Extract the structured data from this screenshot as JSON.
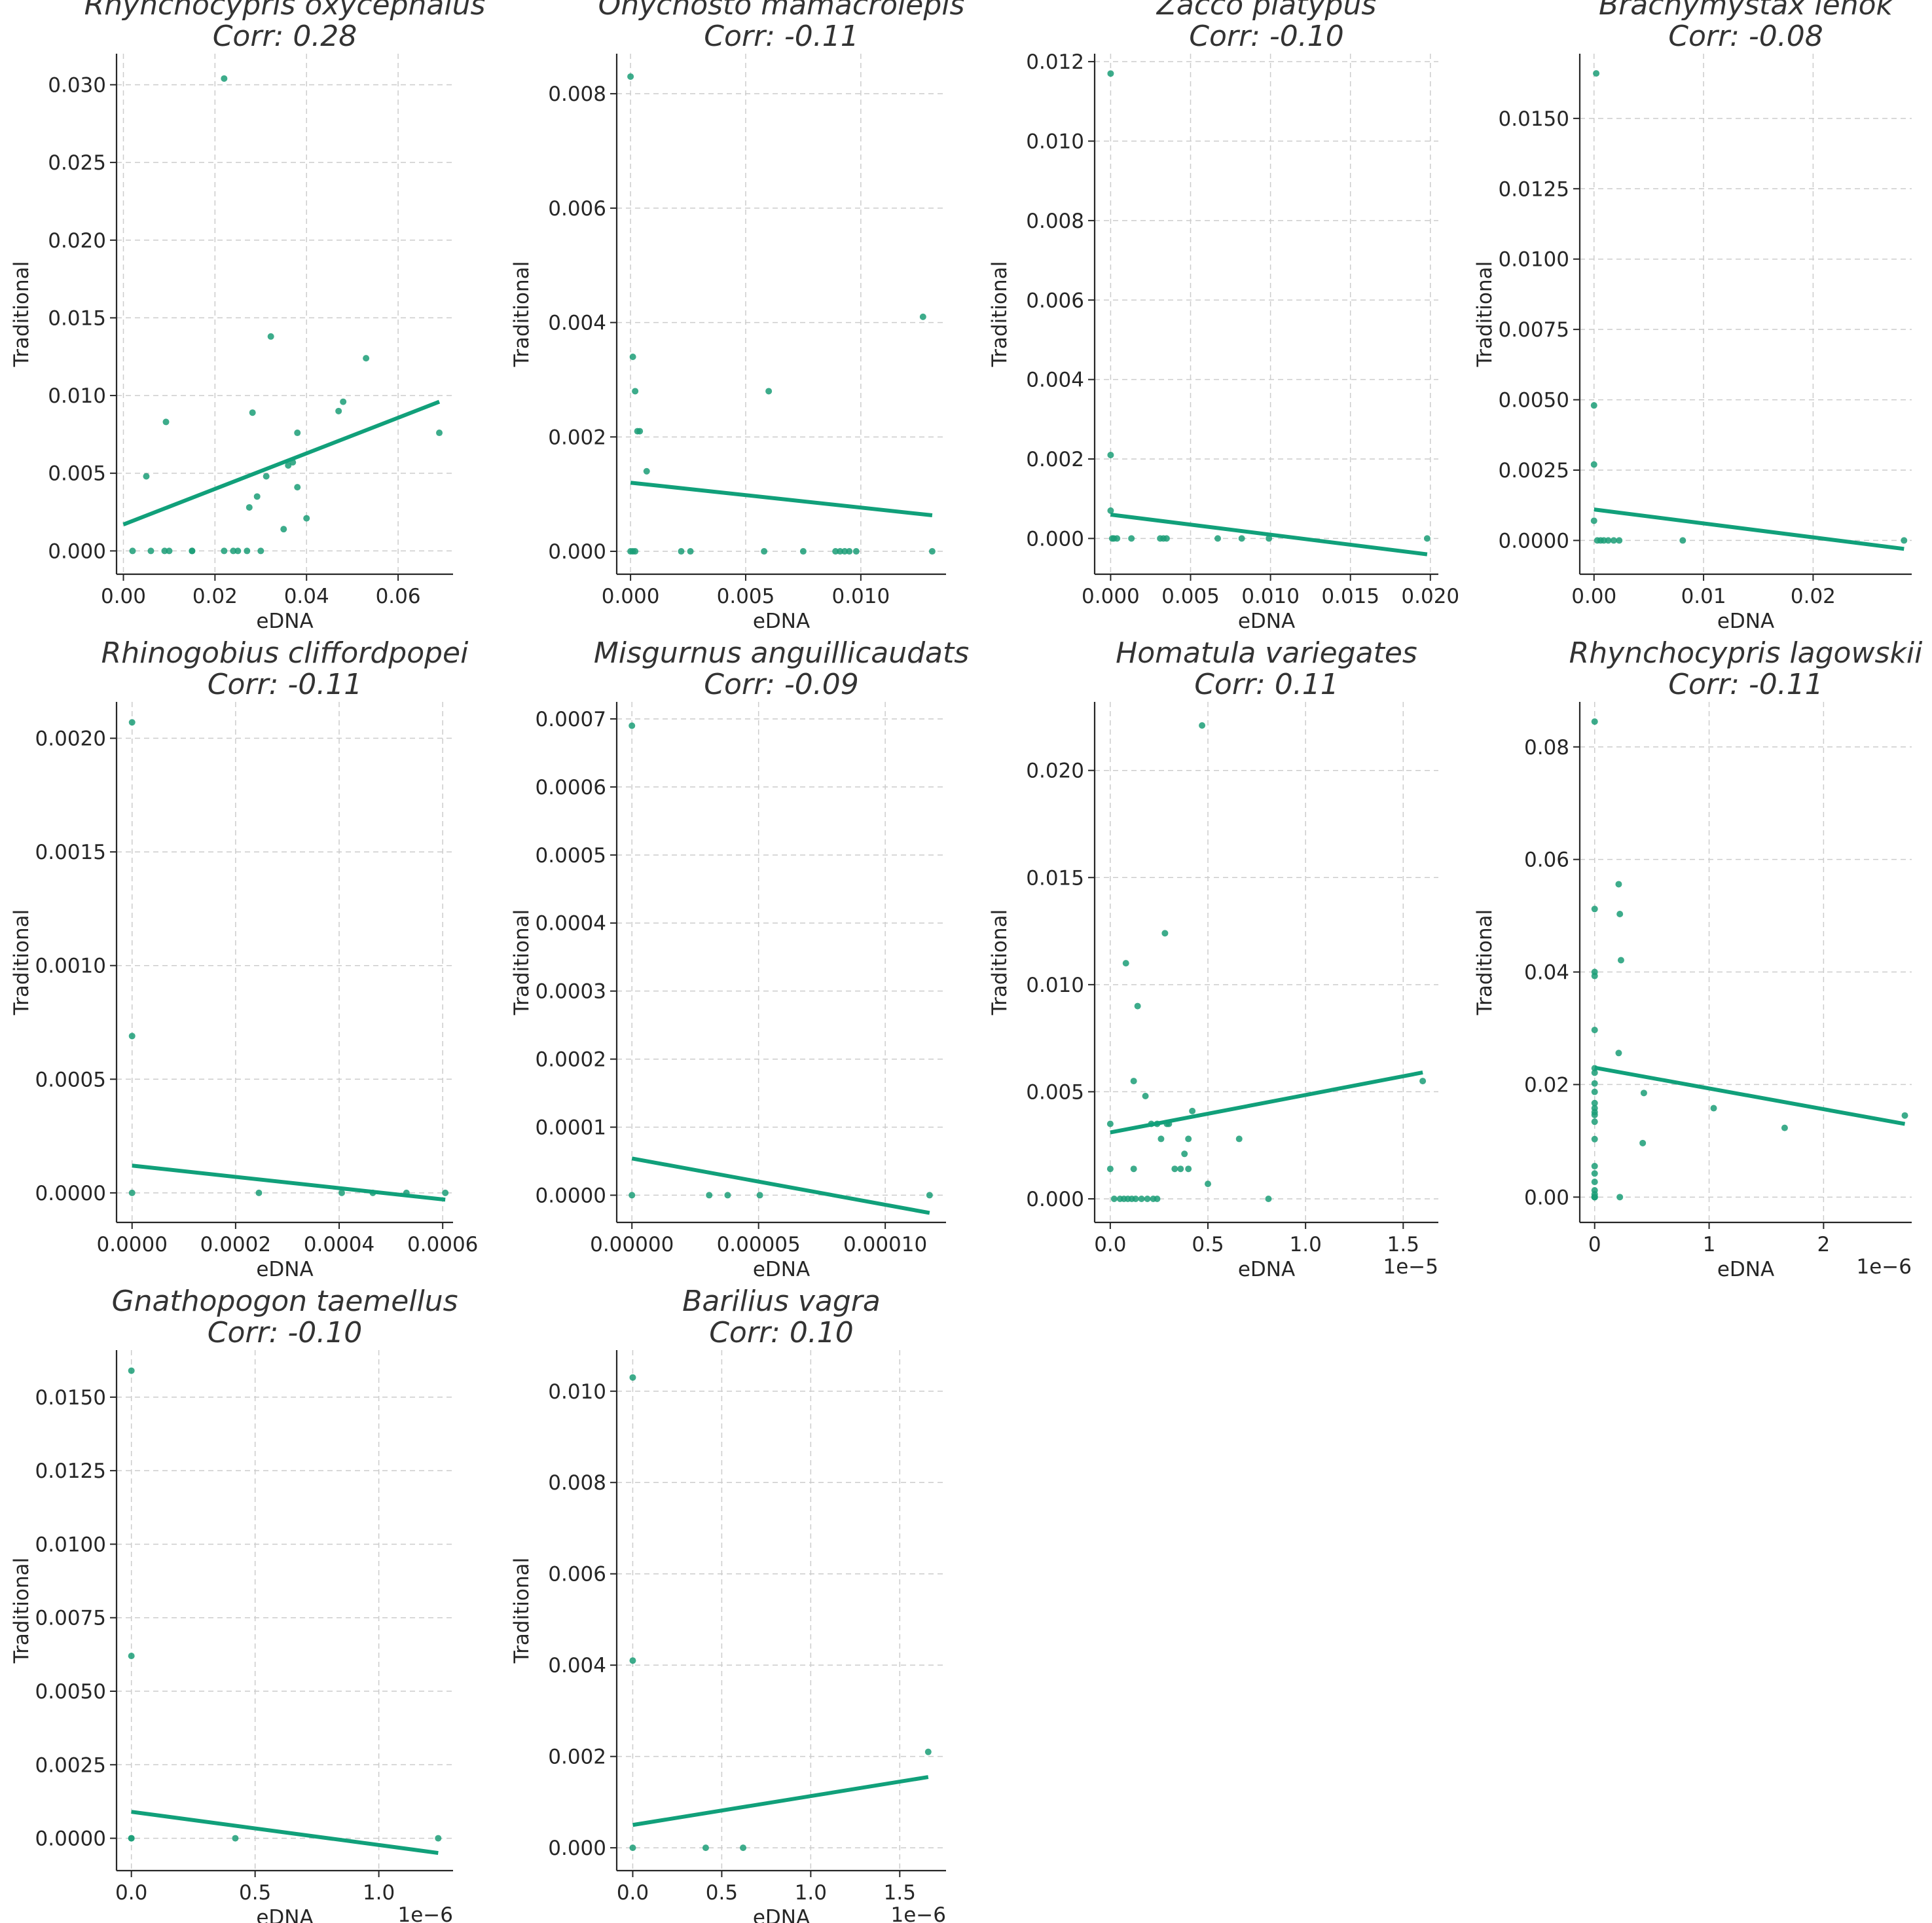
{
  "colors": {
    "marker": "#1b9e77",
    "fit_line": "#11a07a",
    "title": "#333333",
    "grid": "#cccccc"
  },
  "chart_data": [
    {
      "type": "scatter",
      "title": "Rhynchocypris oxycephalus",
      "subtitle": "Corr: 0.28",
      "xlabel": "eDNA",
      "ylabel": "Traditional",
      "offset_text": "",
      "xlim": [
        -0.0015,
        0.072
      ],
      "ylim": [
        -0.0015,
        0.032
      ],
      "xticks": [
        0.0,
        0.02,
        0.04,
        0.06
      ],
      "xtick_labels": [
        "0.00",
        "0.02",
        "0.04",
        "0.06"
      ],
      "yticks": [
        0.0,
        0.005,
        0.01,
        0.015,
        0.02,
        0.025,
        0.03
      ],
      "ytick_labels": [
        "0.000",
        "0.005",
        "0.010",
        "0.015",
        "0.020",
        "0.025",
        "0.030"
      ],
      "x": [
        0.002,
        0.006,
        0.009,
        0.01,
        0.015,
        0.022,
        0.024,
        0.025,
        0.027,
        0.03,
        0.005,
        0.0093,
        0.022,
        0.0322,
        0.0282,
        0.0292,
        0.0275,
        0.0312,
        0.036,
        0.037,
        0.038,
        0.038,
        0.04,
        0.047,
        0.048,
        0.053,
        0.069,
        0.035,
        0.015
      ],
      "y": [
        0.0,
        0.0,
        0.0,
        0.0,
        0.0,
        0.0,
        0.0,
        0.0,
        0.0,
        0.0,
        0.0048,
        0.0083,
        0.0304,
        0.0138,
        0.0089,
        0.0035,
        0.0028,
        0.0048,
        0.0055,
        0.0057,
        0.0076,
        0.0041,
        0.0021,
        0.009,
        0.0096,
        0.0124,
        0.0076,
        0.0014,
        0.0
      ],
      "fit": [
        [
          0.0,
          0.0017
        ],
        [
          0.069,
          0.0096
        ]
      ]
    },
    {
      "type": "scatter",
      "title": "Onychosto mamacrolepis",
      "subtitle": "Corr: -0.11",
      "xlabel": "eDNA",
      "ylabel": "Traditional",
      "offset_text": "",
      "xlim": [
        -0.0006,
        0.0137
      ],
      "ylim": [
        -0.0004,
        0.0087
      ],
      "xticks": [
        0.0,
        0.005,
        0.01
      ],
      "xtick_labels": [
        "0.000",
        "0.005",
        "0.010"
      ],
      "yticks": [
        0.0,
        0.002,
        0.004,
        0.006,
        0.008
      ],
      "ytick_labels": [
        "0.000",
        "0.002",
        "0.004",
        "0.006",
        "0.008"
      ],
      "x": [
        0.0,
        0.0001,
        0.0002,
        0.0003,
        0.0,
        0.0001,
        0.0002,
        0.0004,
        0.0007,
        0.0022,
        0.0026,
        0.0058,
        0.006,
        0.0075,
        0.0089,
        0.0091,
        0.0093,
        0.0095,
        0.0098,
        0.0127,
        0.0131
      ],
      "y": [
        0.0083,
        0.0034,
        0.0028,
        0.0021,
        0.0,
        0.0,
        0.0,
        0.0021,
        0.0014,
        0.0,
        0.0,
        0.0,
        0.0028,
        0.0,
        0.0,
        0.0,
        0.0,
        0.0,
        0.0,
        0.0041,
        0.0
      ],
      "fit": [
        [
          0.0,
          0.0012
        ],
        [
          0.0131,
          0.00063
        ]
      ]
    },
    {
      "type": "scatter",
      "title": "Zacco platypus",
      "subtitle": "Corr: -0.10",
      "xlabel": "eDNA",
      "ylabel": "Traditional",
      "offset_text": "",
      "xlim": [
        -0.001,
        0.0205
      ],
      "ylim": [
        -0.0009,
        0.0122
      ],
      "xticks": [
        0.0,
        0.005,
        0.01,
        0.015,
        0.02
      ],
      "xtick_labels": [
        "0.000",
        "0.005",
        "0.010",
        "0.015",
        "0.020"
      ],
      "yticks": [
        0.0,
        0.002,
        0.004,
        0.006,
        0.008,
        0.01,
        0.012
      ],
      "ytick_labels": [
        "0.000",
        "0.002",
        "0.004",
        "0.006",
        "0.008",
        "0.010",
        "0.012"
      ],
      "x": [
        0.0,
        0.0,
        0.0,
        0.0001,
        0.0002,
        0.0004,
        0.0013,
        0.0031,
        0.0033,
        0.0035,
        0.0067,
        0.0082,
        0.0099,
        0.0198
      ],
      "y": [
        0.0117,
        0.0021,
        0.0007,
        0.0,
        0.0,
        0.0,
        0.0,
        0.0,
        0.0,
        0.0,
        0.0,
        0.0,
        0.0,
        0.0
      ],
      "fit": [
        [
          0.0,
          0.0006
        ],
        [
          0.0198,
          -0.0004
        ]
      ]
    },
    {
      "type": "scatter",
      "title": "Brachymystax lenok",
      "subtitle": "Corr: -0.08",
      "xlabel": "eDNA",
      "ylabel": "Traditional",
      "offset_text": "",
      "xlim": [
        -0.0013,
        0.029
      ],
      "ylim": [
        -0.0012,
        0.0173
      ],
      "xticks": [
        0.0,
        0.01,
        0.02
      ],
      "xtick_labels": [
        "0.00",
        "0.01",
        "0.02"
      ],
      "yticks": [
        0.0,
        0.0025,
        0.005,
        0.0075,
        0.01,
        0.0125,
        0.015
      ],
      "ytick_labels": [
        "0.0000",
        "0.0025",
        "0.0050",
        "0.0075",
        "0.0100",
        "0.0125",
        "0.0150"
      ],
      "x": [
        0.0002,
        0.0,
        0.0,
        0.0,
        0.0003,
        0.0006,
        0.0009,
        0.0013,
        0.0018,
        0.0023,
        0.0081,
        0.0283
      ],
      "y": [
        0.0166,
        0.0048,
        0.0027,
        0.0007,
        0.0,
        0.0,
        0.0,
        0.0,
        0.0,
        0.0,
        0.0,
        0.0
      ],
      "fit": [
        [
          0.0,
          0.0011
        ],
        [
          0.0283,
          -0.0003
        ]
      ]
    },
    {
      "type": "scatter",
      "title": "Rhinogobius cliffordpopei",
      "subtitle": "Corr: -0.11",
      "xlabel": "eDNA",
      "ylabel": "Traditional",
      "offset_text": "",
      "xlim": [
        -3e-05,
        0.00062
      ],
      "ylim": [
        -0.00013,
        0.00216
      ],
      "xticks": [
        0.0,
        0.0002,
        0.0004,
        0.0006
      ],
      "xtick_labels": [
        "0.0000",
        "0.0002",
        "0.0004",
        "0.0006"
      ],
      "yticks": [
        0.0,
        0.0005,
        0.001,
        0.0015,
        0.002
      ],
      "ytick_labels": [
        "0.0000",
        "0.0005",
        "0.0010",
        "0.0015",
        "0.0020"
      ],
      "x": [
        0.0,
        0.0,
        0.0,
        0.000245,
        0.000405,
        0.000465,
        0.00053,
        0.000605
      ],
      "y": [
        0.00207,
        0.00069,
        0.0,
        0.0,
        0.0,
        0.0,
        0.0,
        0.0
      ],
      "fit": [
        [
          0.0,
          0.00012
        ],
        [
          0.000605,
          -3e-05
        ]
      ]
    },
    {
      "type": "scatter",
      "title": "Misgurnus anguillicaudats",
      "subtitle": "Corr: -0.09",
      "xlabel": "eDNA",
      "ylabel": "Traditional",
      "offset_text": "",
      "xlim": [
        -6e-06,
        0.000124
      ],
      "ylim": [
        -4e-05,
        0.000725
      ],
      "xticks": [
        0.0,
        5e-05,
        0.0001
      ],
      "xtick_labels": [
        "0.00000",
        "0.00005",
        "0.00010"
      ],
      "yticks": [
        0.0,
        0.0001,
        0.0002,
        0.0003,
        0.0004,
        0.0005,
        0.0006,
        0.0007
      ],
      "ytick_labels": [
        "0.0000",
        "0.0001",
        "0.0002",
        "0.0003",
        "0.0004",
        "0.0005",
        "0.0006",
        "0.0007"
      ],
      "x": [
        0.0,
        0.0,
        3.05e-05,
        3.78e-05,
        5.05e-05,
        0.0001175
      ],
      "y": [
        0.00069,
        0.0,
        0.0,
        0.0,
        0.0,
        0.0
      ],
      "fit": [
        [
          0.0,
          5.4e-05
        ],
        [
          0.0001175,
          -2.6e-05
        ]
      ]
    },
    {
      "type": "scatter",
      "title": "Homatula variegates",
      "subtitle": "Corr: 0.11",
      "xlabel": "eDNA",
      "ylabel": "Traditional",
      "offset_text": "1e−5",
      "xlim": [
        -0.08,
        1.68
      ],
      "ylim": [
        -0.0011,
        0.0232
      ],
      "xticks": [
        0.0,
        0.5,
        1.0,
        1.5
      ],
      "xtick_labels": [
        "0.0",
        "0.5",
        "1.0",
        "1.5"
      ],
      "yticks": [
        0.0,
        0.005,
        0.01,
        0.015,
        0.02
      ],
      "ytick_labels": [
        "0.000",
        "0.005",
        "0.010",
        "0.015",
        "0.020"
      ],
      "x": [
        0.0,
        0.0,
        0.02,
        0.05,
        0.07,
        0.09,
        0.11,
        0.13,
        0.16,
        0.19,
        0.22,
        0.24,
        0.08,
        0.12,
        0.14,
        0.18,
        0.21,
        0.24,
        0.26,
        0.28,
        0.29,
        0.3,
        0.33,
        0.36,
        0.38,
        0.4,
        0.42,
        0.47,
        0.5,
        0.66,
        0.81,
        1.6,
        0.12,
        0.4
      ],
      "y": [
        0.0035,
        0.0014,
        0.0,
        0.0,
        0.0,
        0.0,
        0.0,
        0.0,
        0.0,
        0.0,
        0.0,
        0.0,
        0.011,
        0.0055,
        0.009,
        0.0048,
        0.0035,
        0.0035,
        0.0028,
        0.0124,
        0.0035,
        0.0035,
        0.0014,
        0.0014,
        0.0021,
        0.0028,
        0.0041,
        0.0221,
        0.0007,
        0.0028,
        0.0,
        0.0055,
        0.0014,
        0.0014
      ],
      "fit": [
        [
          0.0,
          0.0031
        ],
        [
          1.6,
          0.0059
        ]
      ]
    },
    {
      "type": "scatter",
      "title": "Rhynchocypris lagowskii",
      "subtitle": "Corr: -0.11",
      "xlabel": "eDNA",
      "ylabel": "Traditional",
      "offset_text": "1e−6",
      "xlim": [
        -0.13,
        2.77
      ],
      "ylim": [
        -0.0045,
        0.088
      ],
      "xticks": [
        0,
        1,
        2
      ],
      "xtick_labels": [
        "0",
        "1",
        "2"
      ],
      "yticks": [
        0.0,
        0.02,
        0.04,
        0.06,
        0.08
      ],
      "ytick_labels": [
        "0.00",
        "0.02",
        "0.04",
        "0.06",
        "0.08"
      ],
      "x": [
        0.0,
        0.0,
        0.0,
        0.0,
        0.0,
        0.0,
        0.0,
        0.0,
        0.0,
        0.0,
        0.0,
        0.0,
        0.0,
        0.0,
        0.0,
        0.0,
        0.0,
        0.0,
        0.0,
        0.0,
        0.0,
        0.0,
        0.0,
        0.0,
        0.21,
        0.22,
        0.23,
        0.21,
        0.22,
        0.43,
        0.42,
        1.04,
        1.66,
        2.71
      ],
      "y": [
        0.0845,
        0.0512,
        0.04,
        0.0393,
        0.0297,
        0.0229,
        0.0221,
        0.0202,
        0.0187,
        0.0167,
        0.0158,
        0.0151,
        0.0146,
        0.0134,
        0.0103,
        0.0055,
        0.0042,
        0.0027,
        0.0012,
        0.0005,
        0.0,
        0.0,
        0.0,
        0.0,
        0.0556,
        0.0503,
        0.0421,
        0.0256,
        0.0,
        0.0185,
        0.0096,
        0.0158,
        0.0123,
        0.0145
      ],
      "fit": [
        [
          0.0,
          0.023
        ],
        [
          2.71,
          0.013
        ]
      ]
    },
    {
      "type": "scatter",
      "title": "Gnathopogon taemellus",
      "subtitle": "Corr: -0.10",
      "xlabel": "eDNA",
      "ylabel": "Traditional",
      "offset_text": "1e−6",
      "xlim": [
        -0.06,
        1.3
      ],
      "ylim": [
        -0.0011,
        0.0166
      ],
      "xticks": [
        0.0,
        0.5,
        1.0
      ],
      "xtick_labels": [
        "0.0",
        "0.5",
        "1.0"
      ],
      "yticks": [
        0.0,
        0.0025,
        0.005,
        0.0075,
        0.01,
        0.0125,
        0.015
      ],
      "ytick_labels": [
        "0.0000",
        "0.0025",
        "0.0050",
        "0.0075",
        "0.0100",
        "0.0125",
        "0.0150"
      ],
      "x": [
        0.0,
        0.0,
        0.0,
        0.0,
        0.42,
        1.24
      ],
      "y": [
        0.0159,
        0.0062,
        0.0,
        0.0,
        0.0,
        0.0
      ],
      "fit": [
        [
          0.0,
          0.0009
        ],
        [
          1.24,
          -0.0005
        ]
      ]
    },
    {
      "type": "scatter",
      "title": "Barilius vagra",
      "subtitle": "Corr: 0.10",
      "xlabel": "eDNA",
      "ylabel": "Traditional",
      "offset_text": "1e−6",
      "xlim": [
        -0.09,
        1.76
      ],
      "ylim": [
        -0.0005,
        0.0109
      ],
      "xticks": [
        0.0,
        0.5,
        1.0,
        1.5
      ],
      "xtick_labels": [
        "0.0",
        "0.5",
        "1.0",
        "1.5"
      ],
      "yticks": [
        0.0,
        0.002,
        0.004,
        0.006,
        0.008,
        0.01
      ],
      "ytick_labels": [
        "0.000",
        "0.002",
        "0.004",
        "0.006",
        "0.008",
        "0.010"
      ],
      "x": [
        0.0,
        0.0,
        0.0,
        0.41,
        0.62,
        1.66
      ],
      "y": [
        0.0103,
        0.0041,
        0.0,
        0.0,
        0.0,
        0.0021
      ],
      "fit": [
        [
          0.0,
          0.0005
        ],
        [
          1.66,
          0.00155
        ]
      ]
    }
  ]
}
